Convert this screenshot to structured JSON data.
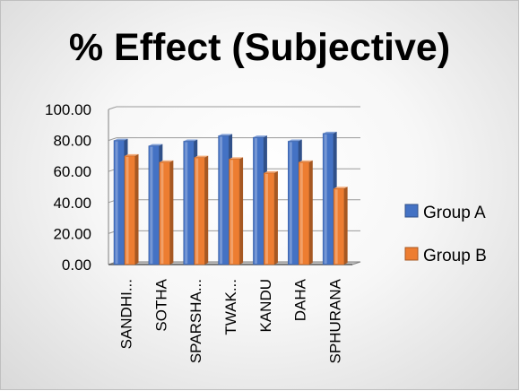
{
  "chart_data": {
    "type": "bar",
    "title": "% Effect (Subjective)",
    "categories": [
      "SANDHI...",
      "SOTHA",
      "SPARSHA...",
      "TWAK...",
      "KANDU",
      "DAHA",
      "SPHURANA"
    ],
    "series": [
      {
        "name": "Group A",
        "values": [
          80,
          76.5,
          79.5,
          83,
          82,
          79.5,
          84.5
        ],
        "color": "#4472C4"
      },
      {
        "name": "Group B",
        "values": [
          70,
          66,
          69,
          68,
          59,
          66,
          49
        ],
        "color": "#ED7D31"
      }
    ],
    "yticks": [
      "0.00",
      "20.00",
      "40.00",
      "60.00",
      "80.00",
      "100.00"
    ],
    "ylim": [
      0,
      100
    ],
    "grid": true,
    "legend_position": "right",
    "style": "3d-clustered-column"
  }
}
